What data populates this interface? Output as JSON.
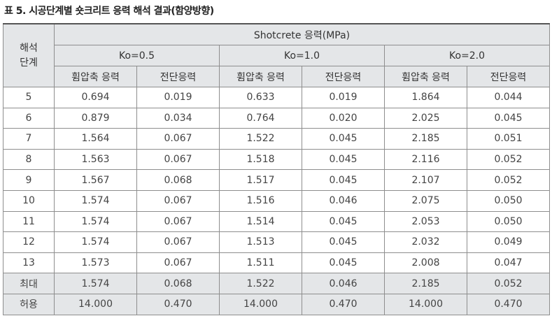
{
  "caption": "표 5. 시공단계별 숏크리트 응력 해석 결과(함양방향)",
  "header": {
    "stage": "해석\n단계",
    "stage_line1": "해석",
    "stage_line2": "단계",
    "group": "Shotcrete 응력(MPa)",
    "ko": [
      "Ko=0.5",
      "Ko=1.0",
      "Ko=2.0"
    ],
    "sub": [
      "휨압축 응력",
      "전단응력",
      "휨압축 응력",
      "전단응력",
      "휨압축 응력",
      "전단응력"
    ]
  },
  "rows": [
    {
      "stage": "5",
      "values": [
        "0.694",
        "0.019",
        "0.633",
        "0.019",
        "1.864",
        "0.044"
      ]
    },
    {
      "stage": "6",
      "values": [
        "0.879",
        "0.034",
        "0.764",
        "0.020",
        "2.025",
        "0.045"
      ]
    },
    {
      "stage": "7",
      "values": [
        "1.564",
        "0.067",
        "1.522",
        "0.045",
        "2.185",
        "0.051"
      ]
    },
    {
      "stage": "8",
      "values": [
        "1.563",
        "0.067",
        "1.518",
        "0.045",
        "2.116",
        "0.052"
      ]
    },
    {
      "stage": "9",
      "values": [
        "1.567",
        "0.068",
        "1.517",
        "0.045",
        "2.107",
        "0.052"
      ]
    },
    {
      "stage": "10",
      "values": [
        "1.574",
        "0.067",
        "1.516",
        "0.046",
        "2.075",
        "0.050"
      ]
    },
    {
      "stage": "11",
      "values": [
        "1.574",
        "0.067",
        "1.514",
        "0.045",
        "2.053",
        "0.050"
      ]
    },
    {
      "stage": "12",
      "values": [
        "1.574",
        "0.067",
        "1.513",
        "0.045",
        "2.032",
        "0.049"
      ]
    },
    {
      "stage": "13",
      "values": [
        "1.573",
        "0.067",
        "1.511",
        "0.045",
        "2.008",
        "0.047"
      ]
    }
  ],
  "summary": [
    {
      "stage": "최대",
      "values": [
        "1.574",
        "0.068",
        "1.522",
        "0.046",
        "2.185",
        "0.052"
      ]
    },
    {
      "stage": "허용",
      "values": [
        "14.000",
        "0.470",
        "14.000",
        "0.470",
        "14.000",
        "0.470"
      ]
    }
  ]
}
